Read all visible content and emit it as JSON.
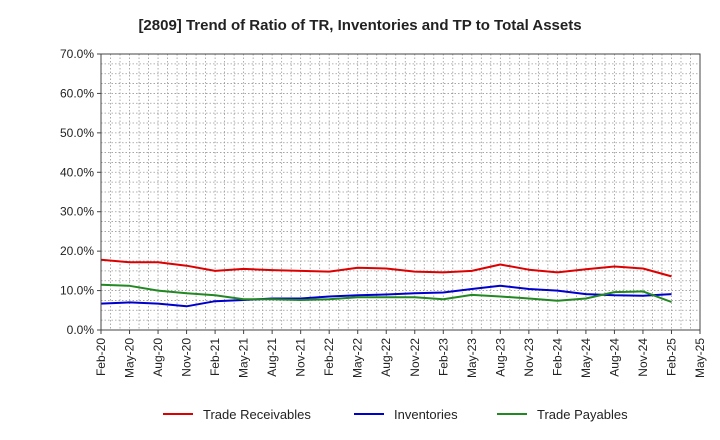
{
  "chart_data": {
    "type": "line",
    "title": "[2809]  Trend of Ratio of TR, Inventories and TP to Total Assets",
    "xlabel": "",
    "ylabel": "",
    "ylim": [
      0,
      70
    ],
    "yticks": [
      "0.0%",
      "10.0%",
      "20.0%",
      "30.0%",
      "40.0%",
      "50.0%",
      "60.0%",
      "70.0%"
    ],
    "xticks": [
      "Feb-20",
      "May-20",
      "Aug-20",
      "Nov-20",
      "Feb-21",
      "May-21",
      "Aug-21",
      "Nov-21",
      "Feb-22",
      "May-22",
      "Aug-22",
      "Nov-22",
      "Feb-23",
      "May-23",
      "Aug-23",
      "Nov-23",
      "Feb-24",
      "May-24",
      "Aug-24",
      "Nov-24",
      "Feb-25",
      "May-25"
    ],
    "x": [
      "Feb-20",
      "May-20",
      "Aug-20",
      "Nov-20",
      "Feb-21",
      "May-21",
      "Aug-21",
      "Nov-21",
      "Feb-22",
      "May-22",
      "Aug-22",
      "Nov-22",
      "Feb-23",
      "May-23",
      "Aug-23",
      "Nov-23",
      "Feb-24",
      "May-24",
      "Aug-24",
      "Nov-24",
      "Feb-25"
    ],
    "grid": true,
    "legend_position": "bottom",
    "series": [
      {
        "name": "Trade Receivables",
        "color": "#dd0000",
        "values": [
          17.8,
          17.2,
          17.2,
          16.3,
          15.0,
          15.5,
          15.2,
          15.0,
          14.8,
          15.8,
          15.6,
          14.8,
          14.6,
          15.0,
          16.6,
          15.3,
          14.6,
          15.4,
          16.1,
          15.6,
          13.6
        ]
      },
      {
        "name": "Inventories",
        "color": "#0000cc",
        "values": [
          6.7,
          7.0,
          6.7,
          6.0,
          7.3,
          7.6,
          8.0,
          8.0,
          8.5,
          8.8,
          9.0,
          9.3,
          9.5,
          10.4,
          11.2,
          10.4,
          10.0,
          9.1,
          8.8,
          8.7,
          9.1
        ]
      },
      {
        "name": "Trade Payables",
        "color": "#228822",
        "values": [
          11.5,
          11.2,
          10.0,
          9.3,
          8.8,
          7.8,
          7.8,
          7.6,
          7.8,
          8.3,
          8.3,
          8.3,
          7.8,
          8.9,
          8.5,
          8.0,
          7.4,
          8.0,
          9.6,
          9.8,
          7.1
        ]
      }
    ]
  }
}
